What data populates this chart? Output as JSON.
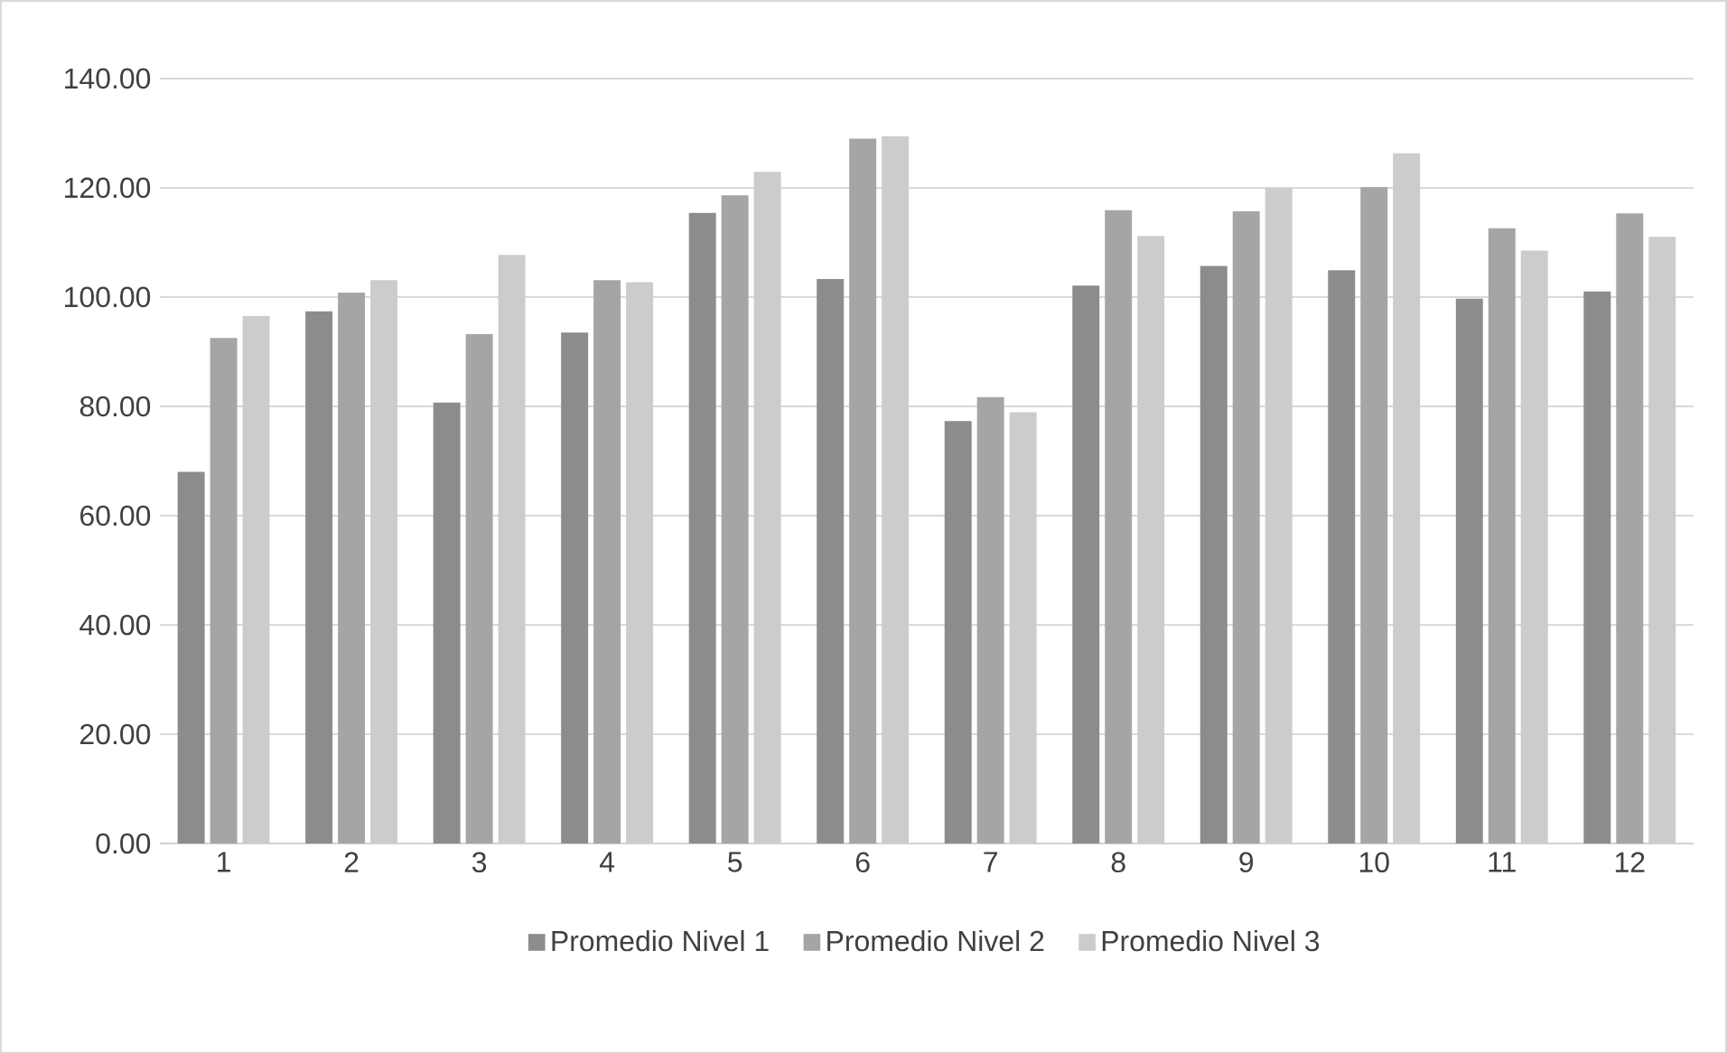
{
  "chart_data": {
    "type": "bar",
    "categories": [
      "1",
      "2",
      "3",
      "4",
      "5",
      "6",
      "7",
      "8",
      "9",
      "10",
      "11",
      "12"
    ],
    "series": [
      {
        "name": "Promedio Nivel 1",
        "color": "#8c8c8c",
        "values": [
          68,
          97.4,
          80.7,
          93.5,
          115.4,
          103.3,
          77.3,
          102.1,
          105.7,
          104.9,
          99.7,
          101
        ]
      },
      {
        "name": "Promedio Nivel 2",
        "color": "#a5a5a5",
        "values": [
          92.5,
          100.8,
          93.2,
          103.1,
          118.6,
          129.0,
          81.7,
          115.9,
          115.7,
          120.1,
          112.6,
          115.3
        ]
      },
      {
        "name": "Promedio Nivel 3",
        "color": "#cccccc",
        "values": [
          96.5,
          103.1,
          107.7,
          102.7,
          122.9,
          129.4,
          78.9,
          111.2,
          119.9,
          126.3,
          108.5,
          111
        ]
      }
    ],
    "ylim": [
      0,
      140
    ],
    "yticks": [
      {
        "value": 0,
        "label": "0.00"
      },
      {
        "value": 20,
        "label": "20.00"
      },
      {
        "value": 40,
        "label": "40.00"
      },
      {
        "value": 60,
        "label": "60.00"
      },
      {
        "value": 80,
        "label": "80.00"
      },
      {
        "value": 100,
        "label": "100.00"
      },
      {
        "value": 120,
        "label": "120.00"
      },
      {
        "value": 140,
        "label": "140.00"
      }
    ],
    "grid": "y",
    "legend": "bottom"
  }
}
